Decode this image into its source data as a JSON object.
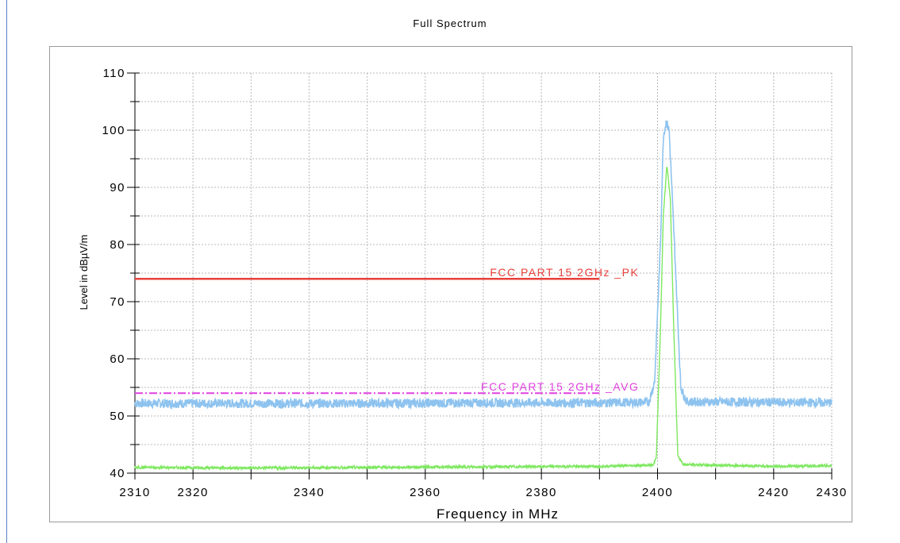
{
  "chart_data": {
    "type": "line",
    "title": "Full Spectrum",
    "xlabel": "Frequency in MHz",
    "ylabel": "Level in dBµV/m",
    "xlim": [
      2310,
      2430
    ],
    "ylim": [
      40,
      110
    ],
    "x_ticks": [
      2310,
      2320,
      2340,
      2360,
      2380,
      2400,
      2420,
      2430
    ],
    "x_minor": [
      2330,
      2350,
      2370,
      2390,
      2410
    ],
    "y_ticks": [
      40,
      50,
      60,
      70,
      80,
      90,
      100,
      110
    ],
    "grid": true,
    "limit_lines": [
      {
        "label": "FCC PART 15 2GHz _PK",
        "y": 74,
        "x_start": 2310,
        "x_end": 2390,
        "color": "#e8403a",
        "style": "solid"
      },
      {
        "label": "FCC PART 15 2GHz _AVG",
        "y": 54,
        "x_start": 2310,
        "x_end": 2390,
        "color": "#e040e0",
        "style": "dash-dot"
      }
    ],
    "series": [
      {
        "color": "#8ec3ef",
        "x": [
          2310,
          2330,
          2350,
          2370,
          2390,
          2398.5,
          2399.5,
          2400.5,
          2401.0,
          2401.5,
          2402.0,
          2403.0,
          2404.0,
          2405.0,
          2420,
          2430
        ],
        "values": [
          52.2,
          52.2,
          52.2,
          52.3,
          52.3,
          52.4,
          56,
          80,
          99,
          101.5,
          100,
          78,
          55,
          52.5,
          52.4,
          52.3
        ]
      },
      {
        "color": "#7ee860",
        "x": [
          2310,
          2330,
          2350,
          2370,
          2390,
          2399.3,
          2399.8,
          2400.5,
          2401.0,
          2401.6,
          2402.2,
          2402.8,
          2403.5,
          2404.5,
          2420,
          2430
        ],
        "values": [
          41,
          40.9,
          41,
          41.1,
          41.2,
          41.4,
          43,
          65,
          85,
          94,
          88,
          65,
          43,
          41.5,
          41.2,
          41.3
        ]
      }
    ]
  }
}
